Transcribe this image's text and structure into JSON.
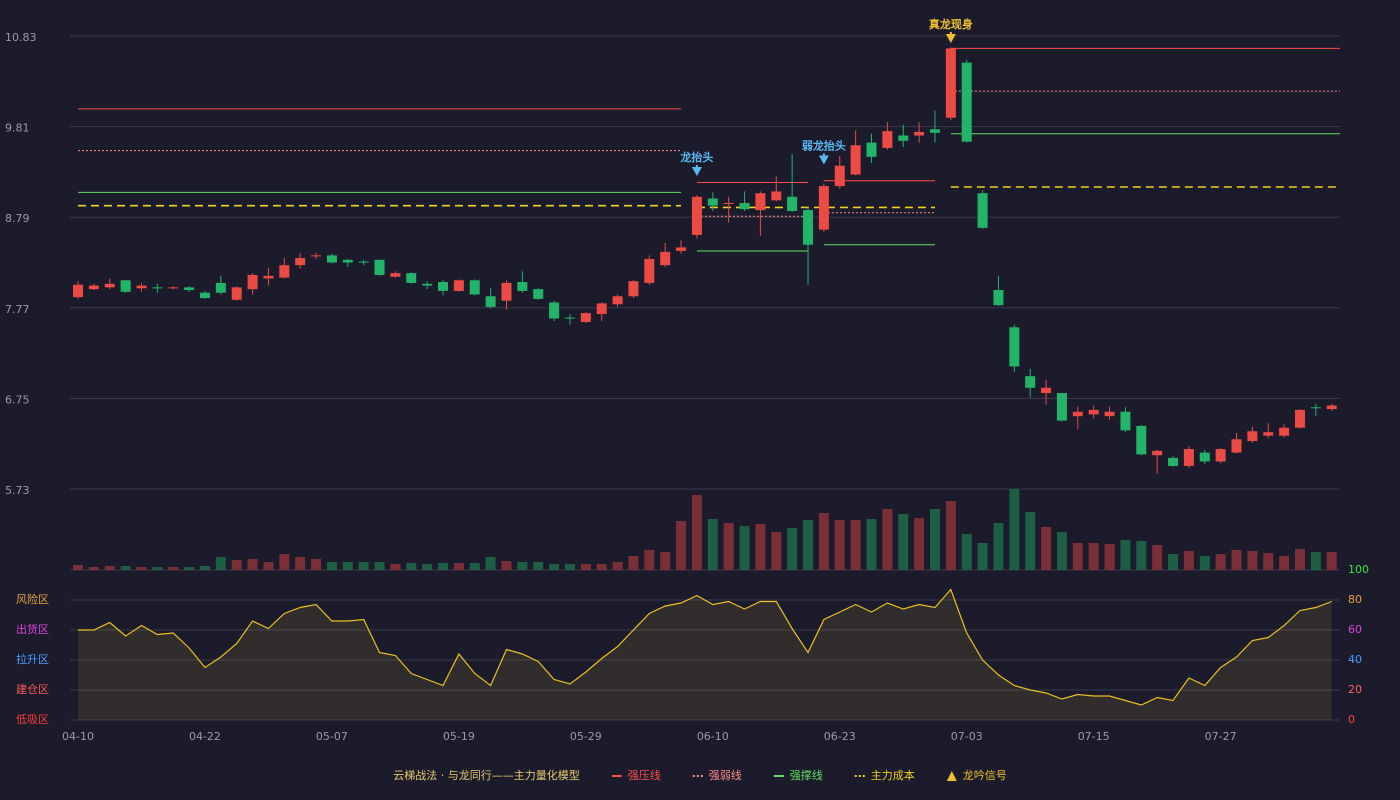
{
  "chart_data": {
    "type": "candlestick",
    "categories": [
      "04-10",
      null,
      null,
      null,
      null,
      null,
      null,
      null,
      "04-22",
      null,
      null,
      null,
      null,
      null,
      null,
      null,
      "05-07",
      null,
      null,
      null,
      null,
      null,
      null,
      null,
      "05-19",
      null,
      null,
      null,
      null,
      null,
      null,
      null,
      "05-29",
      null,
      null,
      null,
      null,
      null,
      null,
      null,
      "06-10",
      null,
      null,
      null,
      null,
      null,
      null,
      null,
      "06-23",
      null,
      null,
      null,
      null,
      null,
      null,
      null,
      "07-03",
      null,
      null,
      null,
      null,
      null,
      null,
      null,
      "07-15",
      null,
      null,
      null,
      null,
      null,
      null,
      null,
      "07-27",
      null,
      null,
      null,
      null,
      null,
      null,
      null
    ],
    "open": [
      7.89,
      7.98,
      8.0,
      8.08,
      7.99,
      8.0,
      7.99,
      8.0,
      7.94,
      8.05,
      7.86,
      7.98,
      8.1,
      8.11,
      8.25,
      8.35,
      8.36,
      8.31,
      8.29,
      8.31,
      8.12,
      8.16,
      8.04,
      8.06,
      7.96,
      8.08,
      7.9,
      7.85,
      8.06,
      7.98,
      7.83,
      7.66,
      7.61,
      7.7,
      7.81,
      7.9,
      8.05,
      8.25,
      8.41,
      8.59,
      9.0,
      8.94,
      8.95,
      8.87,
      8.98,
      9.02,
      8.87,
      8.65,
      9.14,
      9.27,
      9.63,
      9.57,
      9.71,
      9.71,
      9.78,
      9.91,
      10.53,
      9.06,
      7.97,
      7.55,
      7.0,
      6.81,
      6.81,
      6.55,
      6.57,
      6.55,
      6.6,
      6.44,
      6.11,
      6.08,
      5.99,
      6.14,
      6.04,
      6.14,
      6.27,
      6.33,
      6.33,
      6.42,
      6.65,
      6.63
    ],
    "high": [
      8.07,
      8.04,
      8.1,
      8.08,
      8.05,
      8.04,
      8.01,
      8.01,
      7.96,
      8.13,
      8.01,
      8.16,
      8.22,
      8.33,
      8.39,
      8.39,
      8.38,
      8.32,
      8.31,
      8.31,
      8.18,
      8.17,
      8.07,
      8.08,
      8.09,
      8.09,
      7.99,
      8.08,
      8.18,
      7.99,
      7.85,
      7.7,
      7.72,
      7.83,
      7.92,
      8.08,
      8.36,
      8.5,
      8.53,
      9.04,
      9.07,
      9.02,
      9.08,
      9.08,
      9.25,
      9.5,
      8.9,
      9.17,
      9.48,
      9.77,
      9.73,
      9.86,
      9.83,
      9.86,
      9.99,
      10.7,
      10.56,
      9.09,
      8.13,
      7.58,
      7.08,
      6.96,
      6.81,
      6.66,
      6.67,
      6.66,
      6.65,
      6.45,
      6.17,
      6.1,
      6.21,
      6.17,
      6.19,
      6.36,
      6.43,
      6.47,
      6.46,
      6.63,
      6.69,
      6.69
    ],
    "low": [
      7.87,
      7.97,
      7.98,
      7.94,
      7.95,
      7.94,
      7.98,
      7.95,
      7.87,
      7.92,
      7.85,
      7.92,
      8.02,
      8.1,
      8.21,
      8.32,
      8.27,
      8.23,
      8.25,
      8.13,
      8.11,
      8.04,
      7.98,
      7.91,
      7.95,
      7.91,
      7.76,
      7.75,
      7.94,
      7.86,
      7.62,
      7.58,
      7.6,
      7.62,
      7.78,
      7.88,
      8.03,
      8.23,
      8.38,
      8.55,
      8.86,
      8.73,
      8.86,
      8.58,
      8.97,
      8.85,
      8.03,
      8.62,
      9.11,
      9.26,
      9.4,
      9.55,
      9.58,
      9.63,
      9.63,
      9.88,
      9.63,
      8.66,
      7.79,
      7.05,
      6.76,
      6.68,
      6.49,
      6.4,
      6.52,
      6.51,
      6.37,
      6.11,
      5.9,
      5.98,
      5.97,
      6.01,
      6.02,
      6.13,
      6.25,
      6.3,
      6.31,
      6.41,
      6.55,
      6.61
    ],
    "close": [
      8.03,
      8.02,
      8.04,
      7.95,
      8.02,
      7.99,
      8.0,
      7.97,
      7.88,
      7.94,
      8.0,
      8.14,
      8.13,
      8.25,
      8.33,
      8.36,
      8.28,
      8.28,
      8.28,
      8.14,
      8.16,
      8.05,
      8.02,
      7.96,
      8.08,
      7.92,
      7.78,
      8.05,
      7.96,
      7.87,
      7.65,
      7.65,
      7.71,
      7.82,
      7.9,
      8.07,
      8.32,
      8.4,
      8.45,
      9.02,
      8.92,
      8.95,
      8.88,
      9.06,
      9.08,
      8.86,
      8.48,
      9.14,
      9.37,
      9.6,
      9.47,
      9.76,
      9.65,
      9.75,
      9.74,
      10.69,
      9.64,
      8.67,
      7.8,
      7.11,
      6.87,
      6.87,
      6.5,
      6.6,
      6.62,
      6.6,
      6.39,
      6.12,
      6.16,
      5.99,
      6.18,
      6.04,
      6.18,
      6.29,
      6.38,
      6.37,
      6.42,
      6.62,
      6.64,
      6.67
    ],
    "up_color": "#ec4a44",
    "down_color": "#22b56a",
    "ylim": [
      5.73,
      10.83
    ],
    "yticks": [
      5.73,
      6.75,
      7.77,
      8.79,
      9.81,
      10.83
    ],
    "grid": true,
    "levels": [
      {
        "name": "强压线",
        "color": "#ff4d4d",
        "style": "solid",
        "segments": [
          {
            "from": 0,
            "to": 38,
            "value": 10.01
          },
          {
            "from": 39,
            "to": 46,
            "value": 9.18
          },
          {
            "from": 47,
            "to": 54,
            "value": 9.2
          },
          {
            "from": 55,
            "to": 79,
            "value": 10.69
          }
        ]
      },
      {
        "name": "强弱线",
        "color": "#ff8a8a",
        "style": "dotted",
        "segments": [
          {
            "from": 0,
            "to": 38,
            "value": 9.54
          },
          {
            "from": 39,
            "to": 46,
            "value": 8.8
          },
          {
            "from": 47,
            "to": 54,
            "value": 8.84
          },
          {
            "from": 55,
            "to": 79,
            "value": 10.21
          }
        ]
      },
      {
        "name": "强撑线",
        "color": "#5fe05f",
        "style": "solid",
        "segments": [
          {
            "from": 0,
            "to": 38,
            "value": 9.07
          },
          {
            "from": 39,
            "to": 46,
            "value": 8.41
          },
          {
            "from": 47,
            "to": 54,
            "value": 8.48
          },
          {
            "from": 55,
            "to": 79,
            "value": 9.73
          }
        ]
      },
      {
        "name": "主力成本",
        "color": "#f0d020",
        "style": "dashed",
        "segments": [
          {
            "from": 0,
            "to": 38,
            "value": 8.92
          },
          {
            "from": 39,
            "to": 54,
            "value": 8.9
          },
          {
            "from": 55,
            "to": 79,
            "value": 9.13
          }
        ]
      }
    ],
    "signals": [
      {
        "label": "龙抬头",
        "index": 39,
        "color": "#5ab8f0"
      },
      {
        "label": "弱龙抬头",
        "index": 47,
        "color": "#5ab8f0"
      },
      {
        "label": "真龙现身",
        "index": 55,
        "color": "#f0c030"
      }
    ],
    "volume": {
      "values": [
        5,
        3,
        4,
        4,
        3,
        3,
        3,
        3,
        4,
        13,
        10,
        11,
        8,
        16,
        13,
        11,
        8,
        8,
        8,
        8,
        6,
        7,
        6,
        7,
        7,
        7,
        13,
        9,
        8,
        8,
        6,
        6,
        6,
        6,
        8,
        14,
        20,
        18,
        49,
        75,
        51,
        47,
        44,
        46,
        38,
        42,
        50,
        57,
        50,
        50,
        51,
        61,
        56,
        52,
        61,
        69,
        36,
        27,
        47,
        81,
        58,
        43,
        38,
        27,
        27,
        26,
        30,
        29,
        25,
        16,
        19,
        14,
        16,
        20,
        19,
        17,
        14,
        21,
        18,
        18
      ],
      "up_color": "#7a2f38",
      "down_color": "#1e5e45"
    },
    "indicator": {
      "type": "area",
      "values": [
        60,
        60,
        65,
        56,
        63,
        57,
        58,
        48,
        35,
        42,
        51,
        66,
        61,
        71,
        75,
        77,
        66,
        66,
        67,
        45,
        43,
        31,
        27,
        23,
        44,
        31,
        23,
        47,
        44,
        39,
        27,
        24,
        32,
        41,
        49,
        60,
        71,
        76,
        78,
        83,
        77,
        79,
        74,
        79,
        79,
        61,
        45,
        67,
        72,
        77,
        72,
        78,
        74,
        77,
        75,
        87,
        58,
        40,
        30,
        23,
        20,
        18,
        14,
        17,
        16,
        16,
        13,
        10,
        15,
        13,
        28,
        23,
        35,
        42,
        53,
        55,
        63,
        73,
        75,
        79
      ],
      "color": "#e8c020",
      "ylim": [
        0,
        100
      ],
      "yticks": [
        0,
        20,
        40,
        60,
        80,
        100
      ],
      "ytick_colors": [
        "#ff4040",
        "#ff6060",
        "#4a9cff",
        "#e040e0",
        "#e8a040",
        "#40e040"
      ],
      "zones": [
        {
          "label": "低吸区",
          "value": 0,
          "color": "#ff3b3b"
        },
        {
          "label": "建仓区",
          "value": 20,
          "color": "#ff5a5a"
        },
        {
          "label": "拉升区",
          "value": 40,
          "color": "#4a9cff"
        },
        {
          "label": "出货区",
          "value": 60,
          "color": "#e040e0"
        },
        {
          "label": "风险区",
          "value": 80,
          "color": "#e8a040"
        }
      ]
    },
    "legend": {
      "title": "云梯战法 · 与龙同行——主力量化模型",
      "title_color": "#e8c870",
      "signal_name": "龙吟信号",
      "signal_color": "#f0c030"
    }
  }
}
